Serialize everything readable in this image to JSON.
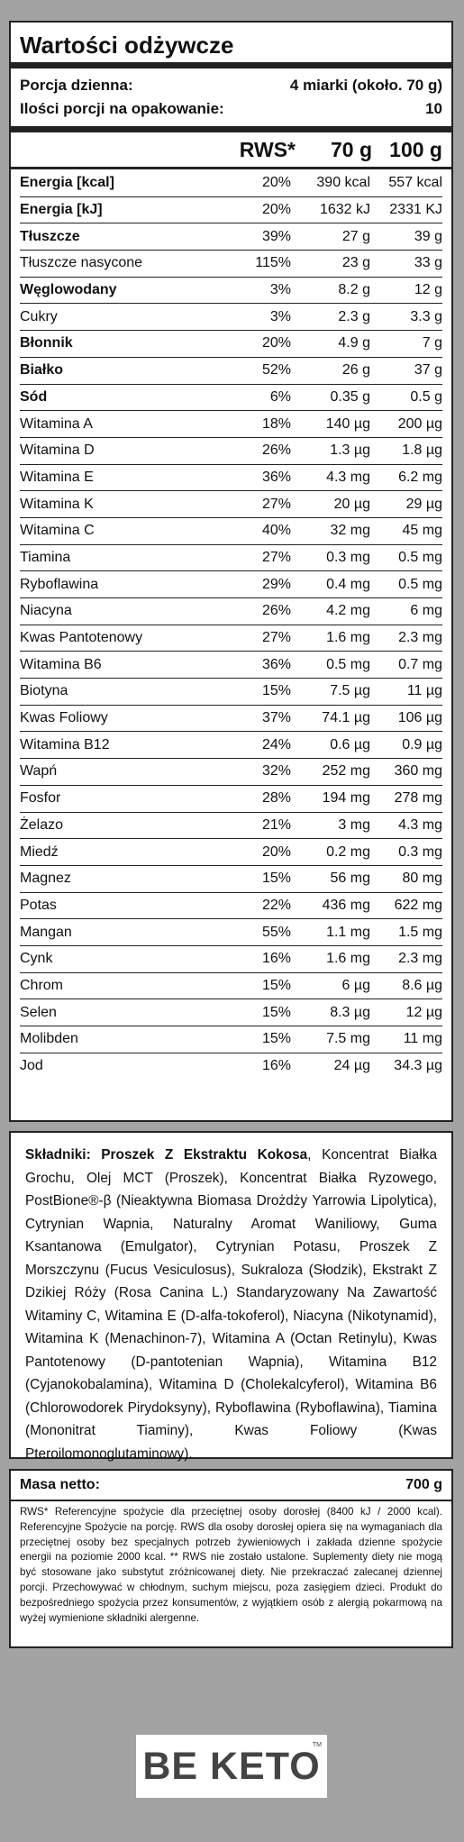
{
  "nutrition": {
    "title": "Wartości odżywcze",
    "serving_label": "Porcja dzienna:",
    "serving_value": "4 miarki (około. 70 g)",
    "portions_label": "Ilości porcji na opakowanie:",
    "portions_value": "10",
    "header": {
      "rws": "RWS*",
      "per_serving": "70 g",
      "per_100": "100 g"
    },
    "rows": [
      {
        "name": "Energia [kcal]",
        "rws": "20%",
        "serving": "390 kcal",
        "per100": "557 kcal",
        "bold": true
      },
      {
        "name": "Energia [kJ]",
        "rws": "20%",
        "serving": "1632 kJ",
        "per100": "2331 KJ",
        "bold": true
      },
      {
        "name": "Tłuszcze",
        "rws": "39%",
        "serving": "27 g",
        "per100": "39 g",
        "bold": true
      },
      {
        "name": "Tłuszcze nasycone",
        "rws": "115%",
        "serving": "23 g",
        "per100": "33 g",
        "bold": false
      },
      {
        "name": "Węglowodany",
        "rws": "3%",
        "serving": "8.2 g",
        "per100": "12 g",
        "bold": true
      },
      {
        "name": "Cukry",
        "rws": "3%",
        "serving": "2.3 g",
        "per100": "3.3 g",
        "bold": false
      },
      {
        "name": "Błonnik",
        "rws": "20%",
        "serving": "4.9 g",
        "per100": "7 g",
        "bold": true
      },
      {
        "name": "Białko",
        "rws": "52%",
        "serving": "26 g",
        "per100": "37 g",
        "bold": true
      },
      {
        "name": "Sód",
        "rws": "6%",
        "serving": "0.35 g",
        "per100": "0.5 g",
        "bold": true
      },
      {
        "name": "Witamina A",
        "rws": "18%",
        "serving": "140 µg",
        "per100": "200 µg",
        "bold": false
      },
      {
        "name": "Witamina D",
        "rws": "26%",
        "serving": "1.3 µg",
        "per100": "1.8 µg",
        "bold": false
      },
      {
        "name": "Witamina E",
        "rws": "36%",
        "serving": "4.3 mg",
        "per100": "6.2 mg",
        "bold": false
      },
      {
        "name": "Witamina K",
        "rws": "27%",
        "serving": "20 µg",
        "per100": "29 µg",
        "bold": false
      },
      {
        "name": "Witamina C",
        "rws": "40%",
        "serving": "32 mg",
        "per100": "45 mg",
        "bold": false
      },
      {
        "name": "Tiamina",
        "rws": "27%",
        "serving": "0.3 mg",
        "per100": "0.5 mg",
        "bold": false
      },
      {
        "name": "Ryboflawina",
        "rws": "29%",
        "serving": "0.4 mg",
        "per100": "0.5 mg",
        "bold": false
      },
      {
        "name": "Niacyna",
        "rws": "26%",
        "serving": "4.2 mg",
        "per100": "6 mg",
        "bold": false
      },
      {
        "name": "Kwas Pantotenowy",
        "rws": "27%",
        "serving": "1.6 mg",
        "per100": "2.3 mg",
        "bold": false
      },
      {
        "name": "Witamina B6",
        "rws": "36%",
        "serving": "0.5 mg",
        "per100": "0.7 mg",
        "bold": false
      },
      {
        "name": "Biotyna",
        "rws": "15%",
        "serving": "7.5 µg",
        "per100": "11 µg",
        "bold": false
      },
      {
        "name": "Kwas Foliowy",
        "rws": "37%",
        "serving": "74.1 µg",
        "per100": "106 µg",
        "bold": false
      },
      {
        "name": "Witamina B12",
        "rws": "24%",
        "serving": "0.6 µg",
        "per100": "0.9 µg",
        "bold": false
      },
      {
        "name": "Wapń",
        "rws": "32%",
        "serving": "252 mg",
        "per100": "360 mg",
        "bold": false
      },
      {
        "name": "Fosfor",
        "rws": "28%",
        "serving": "194 mg",
        "per100": "278 mg",
        "bold": false
      },
      {
        "name": "Żelazo",
        "rws": "21%",
        "serving": "3 mg",
        "per100": "4.3 mg",
        "bold": false
      },
      {
        "name": "Miedź",
        "rws": "20%",
        "serving": "0.2 mg",
        "per100": "0.3 mg",
        "bold": false
      },
      {
        "name": "Magnez",
        "rws": "15%",
        "serving": "56 mg",
        "per100": "80 mg",
        "bold": false
      },
      {
        "name": "Potas",
        "rws": "22%",
        "serving": "436 mg",
        "per100": "622 mg",
        "bold": false
      },
      {
        "name": "Mangan",
        "rws": "55%",
        "serving": "1.1 mg",
        "per100": "1.5 mg",
        "bold": false
      },
      {
        "name": "Cynk",
        "rws": "16%",
        "serving": "1.6 mg",
        "per100": "2.3 mg",
        "bold": false
      },
      {
        "name": "Chrom",
        "rws": "15%",
        "serving": "6 µg",
        "per100": "8.6 µg",
        "bold": false
      },
      {
        "name": "Selen",
        "rws": "15%",
        "serving": "8.3 µg",
        "per100": "12 µg",
        "bold": false
      },
      {
        "name": "Molibden",
        "rws": "15%",
        "serving": "7.5 mg",
        "per100": "11 mg",
        "bold": false
      },
      {
        "name": "Jod",
        "rws": "16%",
        "serving": "24 µg",
        "per100": "34.3 µg",
        "bold": false
      }
    ]
  },
  "ingredients": {
    "label": "Składniki:",
    "first": "Proszek Z Ekstraktu Kokosa",
    "text": ", Koncentrat Białka Grochu, Olej MCT (Proszek), Koncentrat Białka Ryzowego, PostBione®-β (Nieaktywna Biomasa Drożdży Yarrowia Lipolytica), Cytrynian Wapnia, Naturalny Aromat Waniliowy, Guma Ksantanowa (Emulgator), Cytrynian Potasu, Proszek Z Morszczynu (Fucus Vesiculosus), Sukraloza (Słodzik), Ekstrakt Z Dzikiej Róży (Rosa Canina L.) Standaryzowany Na Zawartość Witaminy C, Witamina E (D-alfa-tokoferol), Niacyna (Nikotynamid), Witamina K (Menachinon-7), Witamina A (Octan Retinylu), Kwas Pantotenowy (D-pantotenian Wapnia), Witamina B12 (Cyjanokobalamina), Witamina D (Cholekalcyferol), Witamina B6 (Chlorowodorek Pirydoksyny), Ryboflawina (Ryboflawina), Tiamina (Mononitrat Tiaminy), Kwas Foliowy (Kwas Pteroilomonoglutaminowy)."
  },
  "net": {
    "label": "Masa netto:",
    "value": "700 g"
  },
  "footnote": "RWS* Referencyjne spożycie dla przeciętnej osoby dorosłej (8400 kJ / 2000 kcal). Referencyjne Spożycie na porcję. RWS dla osoby dorosłej opiera się na wymaganiach dla przeciętnej osoby bez specjalnych potrzeb żywieniowych i zakłada dzienne spożycie energii na poziomie 2000 kcal. ** RWS nie zostało ustalone. Suplementy diety nie mogą być stosowane jako substytut zróżnicowanej diety. Nie przekraczać zalecanej dziennej porcji. Przechowywać w chłodnym, suchym miejscu, poza zasięgiem dzieci. Produkt do bezpośredniego spożycia przez konsumentów, z wyjątkiem osób z alergią pokarmową na wyżej wymienione składniki alergenne.",
  "logo": {
    "text": "BE KETO",
    "tm": "TM"
  }
}
